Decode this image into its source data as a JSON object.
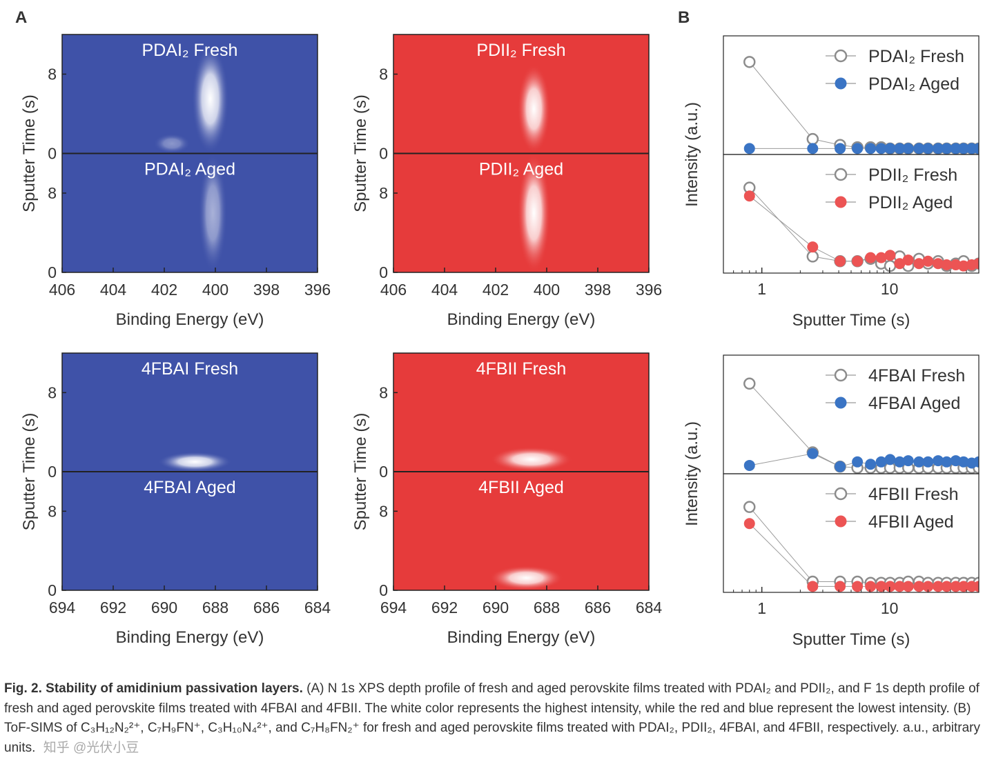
{
  "panel_labels": {
    "a": "A",
    "b": "B"
  },
  "colors": {
    "blue": "#3f52a8",
    "red": "#e63b3b",
    "fresh_marker": "#8c8c8c",
    "aged_blue_marker": "#3a74c4",
    "aged_red_marker": "#ec5454"
  },
  "caption": {
    "lead": "Fig. 2. Stability of amidinium passivation layers.",
    "text": "(A) N 1s XPS depth profile of fresh and aged perovskite films treated with PDAI₂ and PDII₂, and F 1s depth profile of fresh and aged perovskite films treated with 4FBAI and 4FBII. The white color represents the highest intensity, while the red and blue represent the lowest intensity. (B) ToF-SIMS of C₃H₁₂N₂²⁺, C₇H₉FN⁺, C₃H₁₀N₄²⁺, and C₇H₈FN₂⁺ for fresh and aged perovskite films treated with PDAI₂, PDII₂, 4FBAI, and 4FBII, respectively. a.u., arbitrary units."
  },
  "watermark": "知乎 @光伏小豆",
  "chart_data": [
    {
      "type": "heatmap",
      "colormap": "blue",
      "xlabel": "Binding Energy (eV)",
      "ylabel": "Sputter Time (s)",
      "xlim": [
        406,
        396
      ],
      "xticks": [
        "406",
        "404",
        "402",
        "400",
        "398",
        "396"
      ],
      "halves": [
        {
          "label": "PDAI₂ Fresh",
          "ylim": [
            0,
            12
          ],
          "yticks": [
            "8",
            "0"
          ],
          "peaks": [
            {
              "x": 400.2,
              "width": 0.45,
              "ymin": 0,
              "ymax": 11,
              "intensity": 1.0
            },
            {
              "x": 401.7,
              "width": 0.45,
              "ymin": 0,
              "ymax": 2,
              "intensity": 0.4
            }
          ]
        },
        {
          "label": "PDAI₂ Aged",
          "ylim": [
            0,
            12
          ],
          "yticks": [
            "8",
            "0"
          ],
          "peaks": [
            {
              "x": 400.1,
              "width": 0.35,
              "ymin": 0,
              "ymax": 12,
              "intensity": 0.55
            }
          ]
        }
      ]
    },
    {
      "type": "heatmap",
      "colormap": "red",
      "xlabel": "Binding Energy (eV)",
      "ylabel": "Sputter Time (s)",
      "xlim": [
        406,
        396
      ],
      "xticks": [
        "406",
        "404",
        "402",
        "400",
        "398",
        "396"
      ],
      "halves": [
        {
          "label": "PDII₂ Fresh",
          "ylim": [
            0,
            12
          ],
          "yticks": [
            "8",
            "0"
          ],
          "peaks": [
            {
              "x": 400.5,
              "width": 0.4,
              "ymin": 0,
              "ymax": 9,
              "intensity": 1.0
            }
          ]
        },
        {
          "label": "PDII₂ Aged",
          "ylim": [
            0,
            12
          ],
          "yticks": [
            "8",
            "0"
          ],
          "peaks": [
            {
              "x": 400.5,
              "width": 0.4,
              "ymin": 0,
              "ymax": 12,
              "intensity": 1.0
            }
          ]
        }
      ]
    },
    {
      "type": "heatmap",
      "colormap": "blue",
      "xlabel": "Binding Energy (eV)",
      "ylabel": "Sputter Time (s)",
      "xlim": [
        694,
        684
      ],
      "xticks": [
        "694",
        "692",
        "690",
        "688",
        "686",
        "684"
      ],
      "halves": [
        {
          "label": "4FBAI Fresh",
          "ylim": [
            0,
            12
          ],
          "yticks": [
            "8",
            "0"
          ],
          "peaks": [
            {
              "x": 688.8,
              "width": 0.9,
              "ymin": 0,
              "ymax": 2,
              "intensity": 1.0
            }
          ]
        },
        {
          "label": "4FBAI Aged",
          "ylim": [
            0,
            12
          ],
          "yticks": [
            "8",
            "0"
          ],
          "peaks": []
        }
      ]
    },
    {
      "type": "heatmap",
      "colormap": "red",
      "xlabel": "Binding Energy (eV)",
      "ylabel": "Sputter Time (s)",
      "xlim": [
        694,
        684
      ],
      "xticks": [
        "694",
        "692",
        "690",
        "688",
        "686",
        "684"
      ],
      "halves": [
        {
          "label": "4FBII Fresh",
          "ylim": [
            0,
            12
          ],
          "yticks": [
            "8",
            "0"
          ],
          "peaks": [
            {
              "x": 688.6,
              "width": 1.0,
              "ymin": 0,
              "ymax": 2.5,
              "intensity": 1.0
            }
          ]
        },
        {
          "label": "4FBII Aged",
          "ylim": [
            0,
            12
          ],
          "yticks": [
            "8",
            "0"
          ],
          "peaks": [
            {
              "x": 688.8,
              "width": 0.9,
              "ymin": 0,
              "ymax": 2.5,
              "intensity": 1.0
            }
          ]
        }
      ]
    },
    {
      "type": "scatter",
      "xscale": "log",
      "xlim": [
        0.5,
        50
      ],
      "xticks": [
        "1",
        "10"
      ],
      "xlabel": "Sputter Time (s)",
      "ylabel": "Intensity (a.u.)",
      "subplots": [
        {
          "ylim": [
            0,
            1
          ],
          "series": [
            {
              "name": "PDAI₂ Fresh",
              "style": "open-gray",
              "x": [
                0.8,
                2.5,
                4.1,
                5.6,
                7.1,
                8.6,
                10.1,
                12,
                14,
                17,
                20,
                24,
                28,
                33,
                38,
                44,
                50
              ],
              "y": [
                0.78,
                0.13,
                0.08,
                0.06,
                0.06,
                0.06,
                0.05,
                0.05,
                0.05,
                0.05,
                0.05,
                0.05,
                0.05,
                0.05,
                0.05,
                0.05,
                0.05
              ]
            },
            {
              "name": "PDAI₂ Aged",
              "style": "filled-blue",
              "x": [
                0.8,
                2.5,
                4.1,
                5.6,
                7.1,
                8.6,
                10.1,
                12,
                14,
                17,
                20,
                24,
                28,
                33,
                38,
                44,
                50
              ],
              "y": [
                0.05,
                0.05,
                0.05,
                0.05,
                0.05,
                0.05,
                0.05,
                0.05,
                0.05,
                0.05,
                0.05,
                0.05,
                0.05,
                0.05,
                0.05,
                0.05,
                0.05
              ]
            }
          ]
        },
        {
          "ylim": [
            0,
            1
          ],
          "series": [
            {
              "name": "PDII₂ Fresh",
              "style": "open-gray",
              "x": [
                0.8,
                2.5,
                4.1,
                5.6,
                7.1,
                8.6,
                10.1,
                12,
                14,
                17,
                20,
                24,
                28,
                33,
                38,
                44,
                50
              ],
              "y": [
                0.72,
                0.14,
                0.1,
                0.1,
                0.12,
                0.08,
                0.06,
                0.14,
                0.06,
                0.12,
                0.08,
                0.1,
                0.06,
                0.08,
                0.1,
                0.06,
                0.08
              ]
            },
            {
              "name": "PDII₂ Aged",
              "style": "filled-red",
              "x": [
                0.8,
                2.5,
                4.1,
                5.6,
                7.1,
                8.6,
                10.1,
                12,
                14,
                17,
                20,
                24,
                28,
                33,
                38,
                44,
                50
              ],
              "y": [
                0.65,
                0.22,
                0.1,
                0.1,
                0.13,
                0.13,
                0.15,
                0.08,
                0.11,
                0.08,
                0.1,
                0.08,
                0.07,
                0.07,
                0.06,
                0.07,
                0.08
              ]
            }
          ]
        },
        {
          "ylim": [
            0,
            1
          ],
          "series": [
            {
              "name": "4FBAI Fresh",
              "style": "open-gray",
              "x": [
                0.8,
                2.5,
                4.1,
                5.6,
                7.1,
                8.6,
                10.1,
                12,
                14,
                17,
                20,
                24,
                28,
                33,
                38,
                44,
                50
              ],
              "y": [
                0.76,
                0.18,
                0.06,
                0.05,
                0.05,
                0.05,
                0.05,
                0.05,
                0.05,
                0.05,
                0.05,
                0.05,
                0.05,
                0.05,
                0.05,
                0.05,
                0.05
              ]
            },
            {
              "name": "4FBAI Aged",
              "style": "filled-blue",
              "x": [
                0.8,
                2.5,
                4.1,
                5.6,
                7.1,
                8.6,
                10.1,
                12,
                14,
                17,
                20,
                24,
                28,
                33,
                38,
                44,
                50
              ],
              "y": [
                0.07,
                0.17,
                0.06,
                0.1,
                0.08,
                0.1,
                0.12,
                0.1,
                0.11,
                0.1,
                0.1,
                0.11,
                0.1,
                0.11,
                0.1,
                0.09,
                0.1
              ]
            }
          ]
        },
        {
          "ylim": [
            0,
            1
          ],
          "series": [
            {
              "name": "4FBII Fresh",
              "style": "open-gray",
              "x": [
                0.8,
                2.5,
                4.1,
                5.6,
                7.1,
                8.6,
                10.1,
                12,
                14,
                17,
                20,
                24,
                28,
                33,
                38,
                44,
                50
              ],
              "y": [
                0.72,
                0.09,
                0.09,
                0.09,
                0.08,
                0.08,
                0.08,
                0.08,
                0.09,
                0.09,
                0.08,
                0.08,
                0.08,
                0.08,
                0.08,
                0.08,
                0.08
              ]
            },
            {
              "name": "4FBII Aged",
              "style": "filled-red",
              "x": [
                0.8,
                2.5,
                4.1,
                5.6,
                7.1,
                8.6,
                10.1,
                12,
                14,
                17,
                20,
                24,
                28,
                33,
                38,
                44,
                50
              ],
              "y": [
                0.58,
                0.05,
                0.05,
                0.05,
                0.05,
                0.05,
                0.05,
                0.05,
                0.05,
                0.05,
                0.05,
                0.05,
                0.05,
                0.05,
                0.05,
                0.05,
                0.05
              ]
            }
          ]
        }
      ]
    }
  ]
}
